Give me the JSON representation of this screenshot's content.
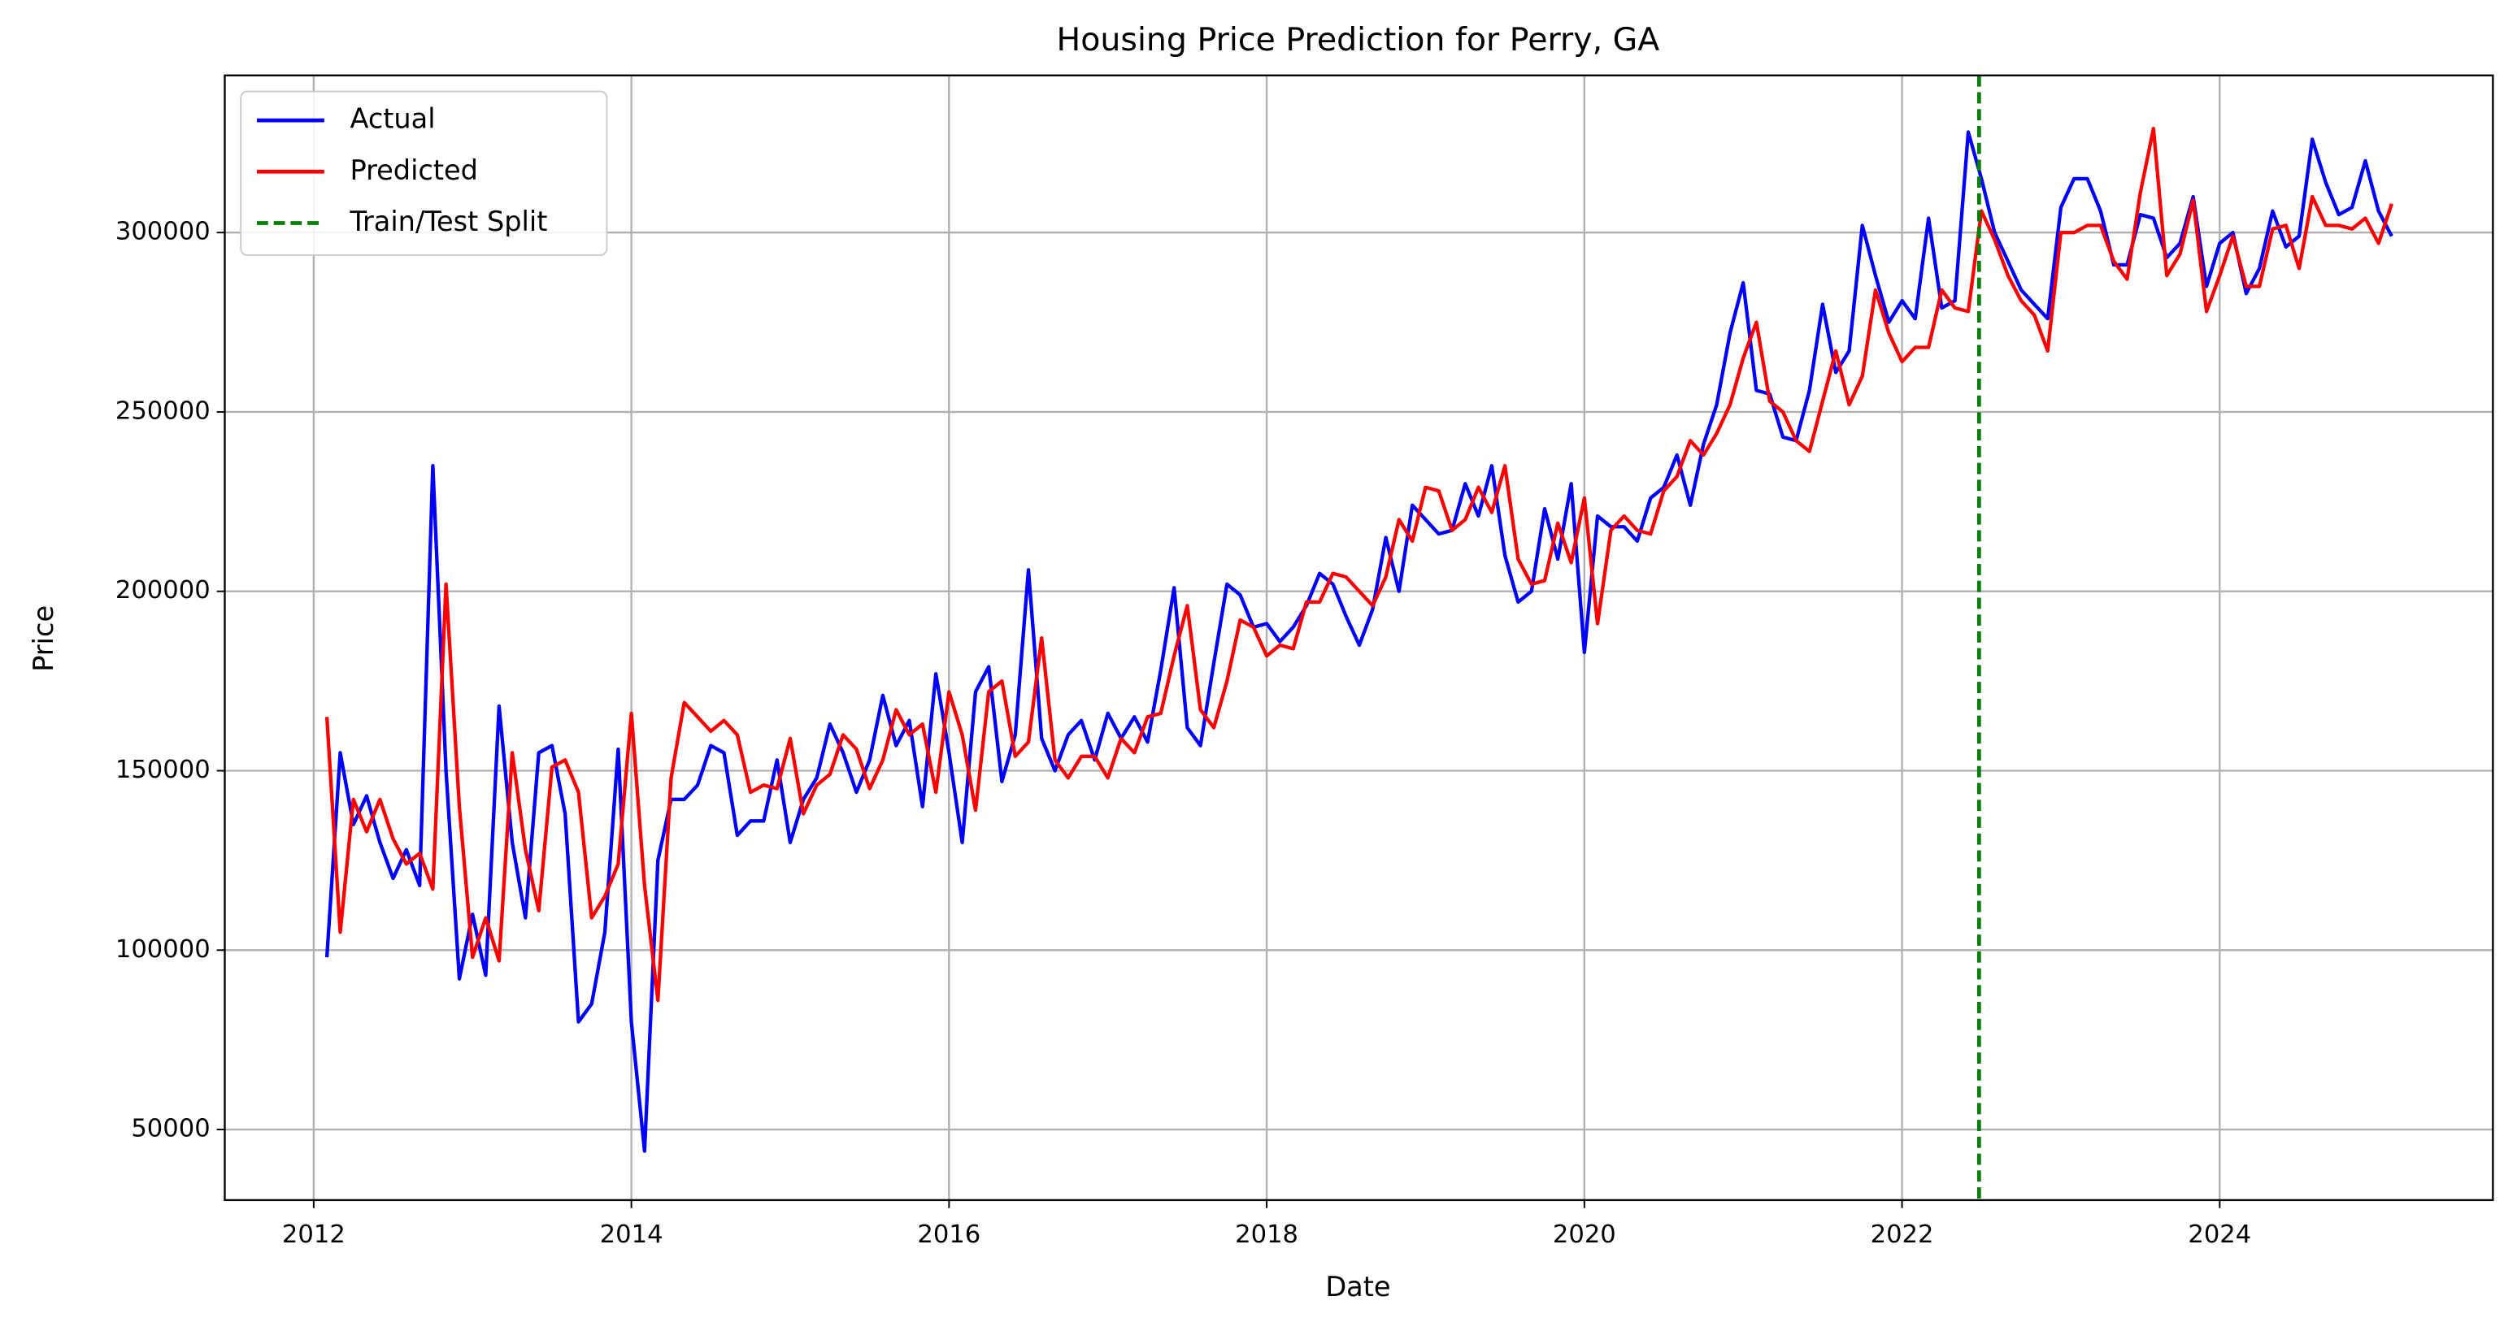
{
  "chart_data": {
    "type": "line",
    "title": "Housing Price Prediction for Perry, GA",
    "x_label": "Date",
    "y_label": "Price",
    "grid": true,
    "legend": "upper left",
    "xlim": [
      2011.44,
      2025.72
    ],
    "xticks": [
      2012,
      2014,
      2016,
      2018,
      2020,
      2022,
      2024
    ],
    "ylim": [
      30330,
      343800
    ],
    "yticks": [
      50000,
      100000,
      150000,
      200000,
      250000,
      300000
    ],
    "x": [
      2012.083,
      2012.167,
      2012.25,
      2012.333,
      2012.417,
      2012.5,
      2012.583,
      2012.667,
      2012.75,
      2012.833,
      2012.917,
      2013,
      2013.083,
      2013.167,
      2013.25,
      2013.333,
      2013.417,
      2013.5,
      2013.583,
      2013.667,
      2013.75,
      2013.833,
      2013.917,
      2014,
      2014.083,
      2014.167,
      2014.25,
      2014.333,
      2014.417,
      2014.5,
      2014.583,
      2014.667,
      2014.75,
      2014.833,
      2014.917,
      2015,
      2015.083,
      2015.167,
      2015.25,
      2015.333,
      2015.417,
      2015.5,
      2015.583,
      2015.667,
      2015.75,
      2015.833,
      2015.917,
      2016,
      2016.083,
      2016.167,
      2016.25,
      2016.333,
      2016.417,
      2016.5,
      2016.583,
      2016.667,
      2016.75,
      2016.833,
      2016.917,
      2017,
      2017.083,
      2017.167,
      2017.25,
      2017.333,
      2017.417,
      2017.5,
      2017.583,
      2017.667,
      2017.75,
      2017.833,
      2017.917,
      2018,
      2018.083,
      2018.167,
      2018.25,
      2018.333,
      2018.417,
      2018.5,
      2018.583,
      2018.667,
      2018.75,
      2018.833,
      2018.917,
      2019,
      2019.083,
      2019.167,
      2019.25,
      2019.333,
      2019.417,
      2019.5,
      2019.583,
      2019.667,
      2019.75,
      2019.833,
      2019.917,
      2020,
      2020.083,
      2020.167,
      2020.25,
      2020.333,
      2020.417,
      2020.5,
      2020.583,
      2020.667,
      2020.75,
      2020.833,
      2020.917,
      2021,
      2021.083,
      2021.167,
      2021.25,
      2021.333,
      2021.417,
      2021.5,
      2021.583,
      2021.667,
      2021.75,
      2021.833,
      2021.917,
      2022,
      2022.083,
      2022.167,
      2022.25,
      2022.333,
      2022.417,
      2022.5,
      2022.583,
      2022.667,
      2022.75,
      2022.833,
      2022.917,
      2023,
      2023.083,
      2023.167,
      2023.25,
      2023.333,
      2023.417,
      2023.5,
      2023.583,
      2023.667,
      2023.75,
      2023.833,
      2023.917,
      2024,
      2024.083,
      2024.167,
      2024.25,
      2024.333,
      2024.417,
      2024.5,
      2024.583,
      2024.667,
      2024.75,
      2024.833,
      2024.917,
      2025,
      2025.083
    ],
    "series": [
      {
        "name": "Actual",
        "color": "#0000ff",
        "values": [
          98000,
          155000,
          135000,
          143000,
          130000,
          120000,
          128000,
          118000,
          235000,
          150000,
          92000,
          110000,
          93000,
          168000,
          130000,
          109000,
          155000,
          157000,
          138000,
          80000,
          85000,
          105000,
          156000,
          80000,
          44000,
          125000,
          142000,
          142000,
          146000,
          157000,
          155000,
          132000,
          136000,
          136000,
          153000,
          130000,
          142000,
          148000,
          163000,
          155000,
          144000,
          153000,
          171000,
          157000,
          164000,
          140000,
          177000,
          155000,
          130000,
          172000,
          179000,
          147000,
          160000,
          206000,
          159000,
          150000,
          160000,
          164000,
          153000,
          166000,
          159000,
          165000,
          158000,
          178000,
          201000,
          162000,
          157000,
          180000,
          202000,
          199000,
          190000,
          191000,
          186000,
          190000,
          196000,
          205000,
          202000,
          193000,
          185000,
          195000,
          215000,
          200000,
          224000,
          220000,
          216000,
          217000,
          230000,
          221000,
          235000,
          210000,
          197000,
          200000,
          223000,
          209000,
          230000,
          183000,
          221000,
          218000,
          218000,
          214000,
          226000,
          229000,
          238000,
          224000,
          241000,
          252000,
          272000,
          286000,
          256000,
          255000,
          243000,
          242000,
          256000,
          280000,
          261000,
          267000,
          302000,
          288000,
          275000,
          281000,
          276000,
          304000,
          279000,
          281000,
          328000,
          315000,
          300000,
          292000,
          284000,
          280000,
          276000,
          307000,
          315000,
          315000,
          306000,
          291000,
          291000,
          305000,
          304000,
          293000,
          297000,
          310000,
          285000,
          297000,
          300000,
          283000,
          290000,
          306000,
          296000,
          299000,
          326000,
          314000,
          305000,
          307000,
          320000,
          306000,
          299000
        ]
      },
      {
        "name": "Predicted",
        "color": "#ff0000",
        "values": [
          165000,
          105000,
          142000,
          133000,
          142000,
          131000,
          124000,
          127000,
          117000,
          202000,
          140000,
          98000,
          109000,
          97000,
          155000,
          128000,
          111000,
          151000,
          153000,
          144000,
          109000,
          115000,
          124000,
          166000,
          118000,
          86000,
          148000,
          169000,
          165000,
          161000,
          164000,
          160000,
          144000,
          146000,
          145000,
          159000,
          138000,
          146000,
          149000,
          160000,
          156000,
          145000,
          153000,
          167000,
          160000,
          163000,
          144000,
          172000,
          160000,
          139000,
          172000,
          175000,
          154000,
          158000,
          187000,
          153000,
          148000,
          154000,
          154000,
          148000,
          159000,
          155000,
          165000,
          166000,
          182000,
          196000,
          167000,
          162000,
          175000,
          192000,
          190000,
          182000,
          185000,
          184000,
          197000,
          197000,
          205000,
          204000,
          200000,
          196000,
          204000,
          220000,
          214000,
          229000,
          228000,
          217000,
          220000,
          229000,
          222000,
          235000,
          209000,
          202000,
          203000,
          219000,
          208000,
          226000,
          191000,
          217000,
          221000,
          217000,
          216000,
          228000,
          232000,
          242000,
          238000,
          244000,
          252000,
          265000,
          275000,
          253000,
          250000,
          242000,
          239000,
          253000,
          267000,
          252000,
          260000,
          284000,
          272000,
          264000,
          268000,
          268000,
          284000,
          279000,
          278000,
          306000,
          298000,
          288000,
          281000,
          277000,
          267000,
          300000,
          300000,
          302000,
          302000,
          292000,
          287000,
          311000,
          329000,
          288000,
          294000,
          309000,
          278000,
          288000,
          299000,
          285000,
          285000,
          301000,
          302000,
          290000,
          310000,
          302000,
          302000,
          301000,
          304000,
          297000,
          308000
        ]
      }
    ],
    "vlines": [
      {
        "name": "Train/Test Split",
        "x": 2022.485,
        "color": "#008000",
        "dashed": true
      }
    ]
  }
}
